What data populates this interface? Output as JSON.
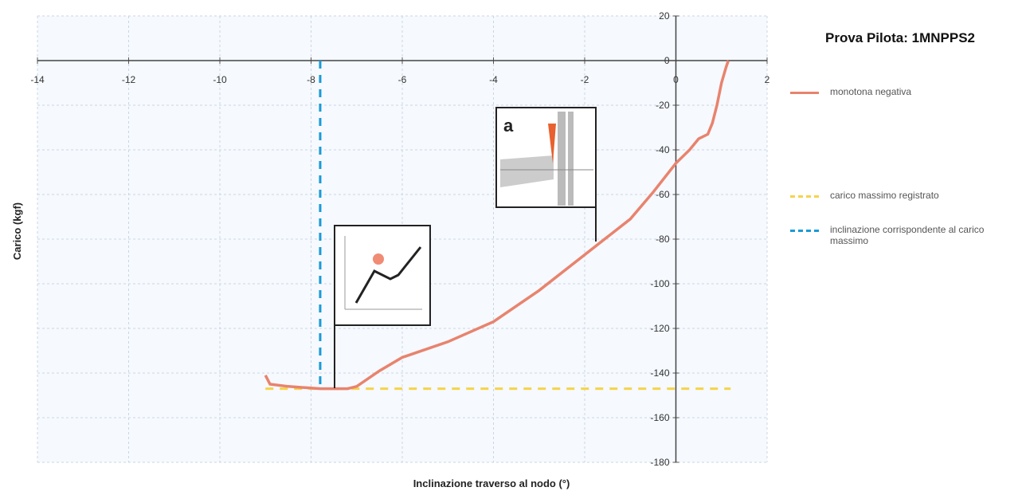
{
  "chart_data": {
    "type": "line",
    "title": "Prova Pilota: 1MNPPS2",
    "x_label": "Inclinazione traverso al nodo (°)",
    "y_label": "Carico (kgf)",
    "annotation": "a",
    "xlim": [
      -14,
      2
    ],
    "ylim": [
      -180,
      20
    ],
    "xticks": [
      -14,
      -12,
      -10,
      -8,
      -6,
      -4,
      -2,
      0,
      2
    ],
    "yticks": [
      20,
      0,
      -20,
      -40,
      -60,
      -80,
      -100,
      -120,
      -140,
      -160,
      -180
    ],
    "grid": true,
    "series": [
      {
        "name": "monotona negativa",
        "color": "#e8836e",
        "dash": false,
        "x": [
          -9,
          -8.9,
          -8.5,
          -7.8,
          -7.2,
          -7,
          -6.5,
          -6,
          -5,
          -4,
          -3,
          -2,
          -1,
          -0.5,
          0,
          0.3,
          0.5,
          0.7,
          0.8,
          0.9,
          1.0,
          1.1,
          1.15
        ],
        "values": [
          -141,
          -145,
          -146,
          -147,
          -147,
          -146,
          -139,
          -133,
          -126,
          -117,
          -103,
          -87,
          -71,
          -59,
          -46,
          -40,
          -35,
          -33,
          -28,
          -20,
          -10,
          -3,
          0
        ]
      },
      {
        "name": "carico massimo registrato",
        "color": "#f5d44a",
        "dash": true,
        "x": [
          -9,
          1.2
        ],
        "values": [
          -147,
          -147
        ]
      },
      {
        "name": "inclinazione corrispondente al carico massimo",
        "color": "#1a9bd7",
        "dash": true,
        "x": [
          -7.8,
          -7.8
        ],
        "values": [
          0,
          -147
        ]
      }
    ]
  }
}
